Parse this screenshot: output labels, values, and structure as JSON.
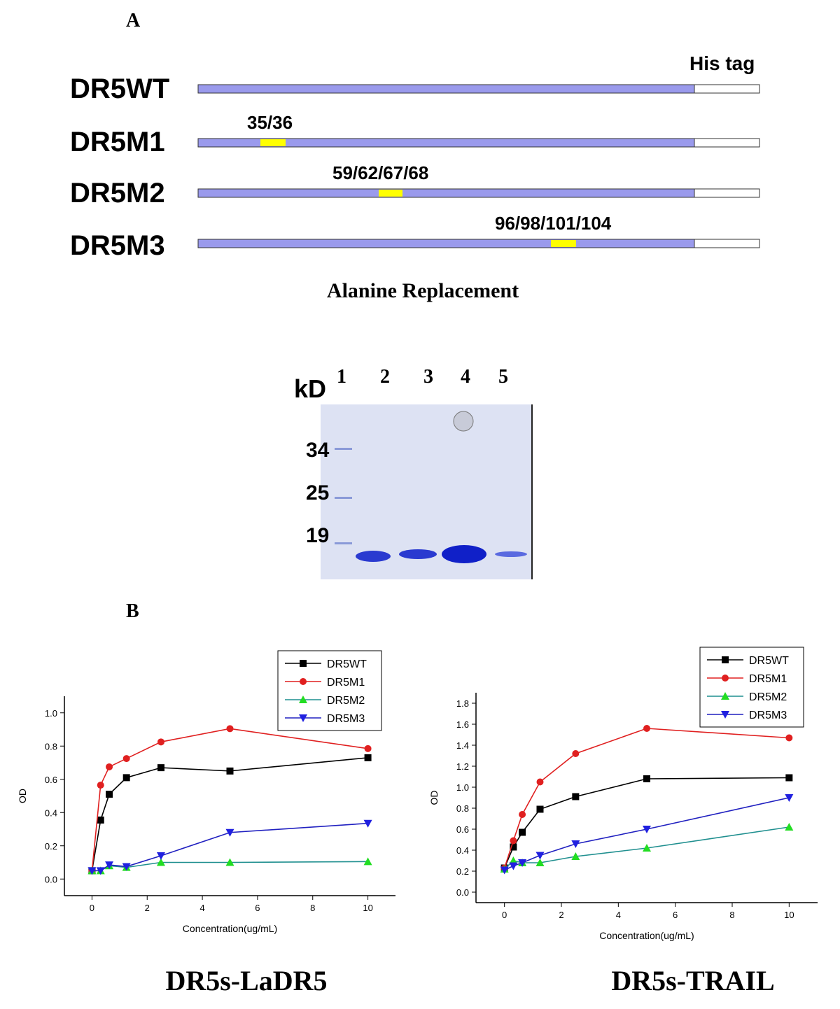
{
  "panel_a": {
    "label": "A",
    "his_tag": "His tag",
    "constructs": [
      {
        "name": "DR5WT"
      },
      {
        "name": "DR5M1",
        "mutation": "35/36"
      },
      {
        "name": "DR5M2",
        "mutation": "59/62/67/68"
      },
      {
        "name": "DR5M3",
        "mutation": "96/98/101/104"
      }
    ],
    "caption": "Alanine Replacement"
  },
  "gel": {
    "unit": "kD",
    "lanes": [
      "1",
      "2",
      "3",
      "4",
      "5"
    ],
    "markers": [
      "34",
      "25",
      "19"
    ]
  },
  "panel_b_label": "B",
  "chart_data": [
    {
      "type": "line",
      "title": "DR5s-LaDR5",
      "x_label": "Concentration(ug/mL)",
      "y_label": "OD",
      "x": [
        0,
        0.3125,
        0.625,
        1.25,
        2.5,
        5,
        10
      ],
      "xlim": [
        -1,
        11
      ],
      "xticks": [
        0,
        2,
        4,
        6,
        8,
        10
      ],
      "ylim": [
        -0.1,
        1.1
      ],
      "yticks": [
        {
          "value": 0,
          "label": "0.0"
        },
        0.2,
        0.4,
        0.6,
        0.8,
        {
          "value": 1,
          "label": "1.0"
        }
      ],
      "legend": "upper right",
      "series": [
        {
          "name": "DR5WT",
          "color": "#000000",
          "marker_color": "#000000",
          "marker": "square",
          "values": [
            0.05,
            0.355,
            0.51,
            0.61,
            0.67,
            0.65,
            0.73
          ]
        },
        {
          "name": "DR5M1",
          "color": "#e02020",
          "marker_color": "#e02020",
          "marker": "circle",
          "values": [
            0.05,
            0.565,
            0.675,
            0.725,
            0.825,
            0.905,
            0.785
          ]
        },
        {
          "name": "DR5M2",
          "color": "#1f8f8f",
          "marker_color": "#22dd22",
          "marker": "triangle",
          "values": [
            0.05,
            0.05,
            0.08,
            0.07,
            0.1,
            0.1,
            0.105
          ]
        },
        {
          "name": "DR5M3",
          "color": "#2020c0",
          "marker_color": "#2020e0",
          "marker": "triangle-down",
          "values": [
            0.05,
            0.05,
            0.085,
            0.075,
            0.14,
            0.28,
            0.335
          ]
        }
      ]
    },
    {
      "type": "line",
      "title": "DR5s-TRAIL",
      "x_label": "Concentration(ug/mL)",
      "y_label": "OD",
      "x": [
        0,
        0.3125,
        0.625,
        1.25,
        2.5,
        5,
        10
      ],
      "xlim": [
        -1,
        11
      ],
      "xticks": [
        0,
        2,
        4,
        6,
        8,
        10
      ],
      "ylim": [
        -0.1,
        1.9
      ],
      "yticks": [
        {
          "value": 0,
          "label": "0.0"
        },
        0.2,
        0.4,
        0.6,
        0.8,
        {
          "value": 1,
          "label": "1.0"
        },
        1.2,
        1.4,
        1.6,
        1.8
      ],
      "legend": "upper right",
      "series": [
        {
          "name": "DR5WT",
          "color": "#000000",
          "marker_color": "#000000",
          "marker": "square",
          "values": [
            0.23,
            0.43,
            0.57,
            0.79,
            0.91,
            1.08,
            1.09
          ]
        },
        {
          "name": "DR5M1",
          "color": "#e02020",
          "marker_color": "#e02020",
          "marker": "circle",
          "values": [
            0.23,
            0.49,
            0.74,
            1.05,
            1.32,
            1.56,
            1.47
          ]
        },
        {
          "name": "DR5M2",
          "color": "#1f8f8f",
          "marker_color": "#22dd22",
          "marker": "triangle",
          "values": [
            0.22,
            0.3,
            0.28,
            0.28,
            0.34,
            0.42,
            0.62
          ]
        },
        {
          "name": "DR5M3",
          "color": "#2020c0",
          "marker_color": "#2020e0",
          "marker": "triangle-down",
          "values": [
            0.21,
            0.25,
            0.28,
            0.35,
            0.46,
            0.6,
            0.9
          ]
        }
      ]
    }
  ]
}
